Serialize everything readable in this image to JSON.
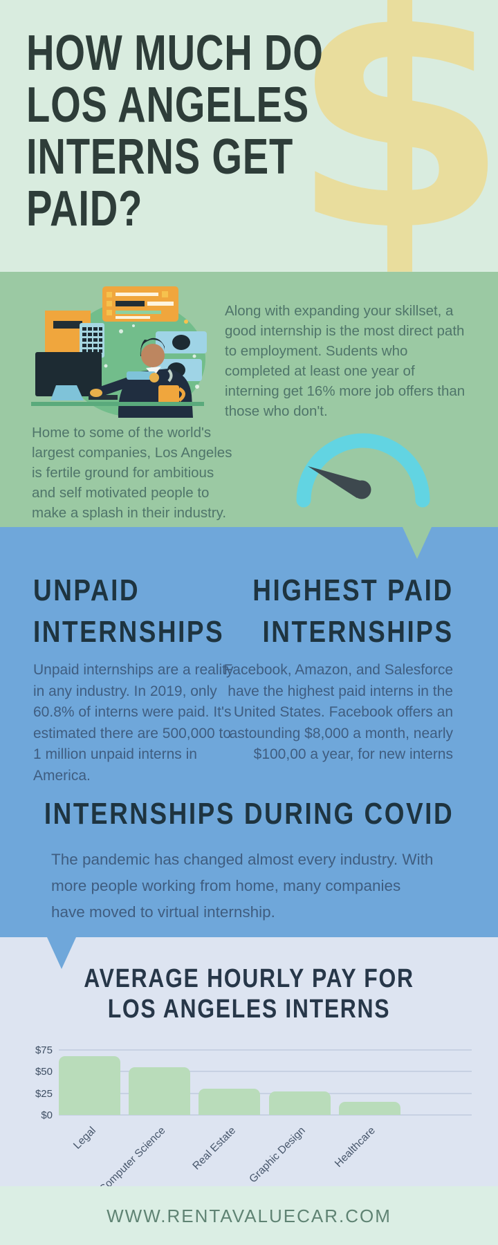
{
  "header": {
    "title_lines": [
      "HOW MUCH DO",
      "LOS ANGELES",
      "INTERNS GET",
      "PAID?"
    ],
    "watermark": "$"
  },
  "intro": {
    "right_paragraph": "Along with expanding your skillset, a good internship is the most direct path to employment. Sudents who completed at least one year of interning get 16% more job offers than those who don't.",
    "left_paragraph": "Home to some of the world's largest companies, Los Angeles is fertile ground for ambitious and self motivated people to make a splash in their industry."
  },
  "unpaid": {
    "heading_lines": [
      "UNPAID",
      "INTERNSHIPS"
    ],
    "body": "Unpaid internships are a reality in any industry. In 2019, only 60.8% of interns were paid. It's estimated there are 500,000 to 1 million unpaid interns in America."
  },
  "highest": {
    "heading_lines": [
      "HIGHEST PAID",
      "INTERNSHIPS"
    ],
    "body": "Facebook, Amazon, and Salesforce have the highest paid interns in the United States. Facebook offers an astounding $8,000 a month, nearly $100,00 a year, for new interns"
  },
  "covid": {
    "heading": "INTERNSHIPS DURING COVID",
    "body": "The pandemic has changed almost every industry. With more people working from home, many companies have moved to virtual internship."
  },
  "chart_section": {
    "heading_lines": [
      "AVERAGE HOURLY PAY FOR",
      "LOS ANGELES INTERNS"
    ]
  },
  "chart_data": {
    "type": "bar",
    "title": "Average Hourly Pay for Los Angeles Interns",
    "categories": [
      "Legal",
      "Computer Science",
      "Real Estate",
      "Graphic Design",
      "Healthcare"
    ],
    "values": [
      68,
      55,
      30,
      27,
      15
    ],
    "xlabel": "",
    "ylabel": "",
    "ylim": [
      0,
      75
    ],
    "yticks": [
      0,
      25,
      50,
      75
    ],
    "ytick_labels": [
      "$0",
      "$25",
      "$50",
      "$75"
    ],
    "grid": true,
    "legend": "none",
    "bar_color": "#b9dcba"
  },
  "footer": {
    "url": "WWW.RENTAVALUECAR.COM"
  },
  "colors": {
    "mint": "#d9ecdf",
    "green": "#9bc9a3",
    "blue": "#6fa7da",
    "lavender": "#dde4f1",
    "footer_mint": "#dbeee4",
    "title_dark": "#2e3d39",
    "heading_dark": "#1e3440",
    "green_text": "#4f756a",
    "blue_text": "#3f5d80",
    "gauge_cyan": "#62d4e2",
    "needle_dark": "#3d484e",
    "bar_green": "#b9dcba",
    "watermark_yellow": "#e9dd9d"
  },
  "icons": {
    "watermark": "dollar-sign-watermark",
    "gauge": "speedometer-gauge",
    "illustration": "person-working-at-desk"
  }
}
